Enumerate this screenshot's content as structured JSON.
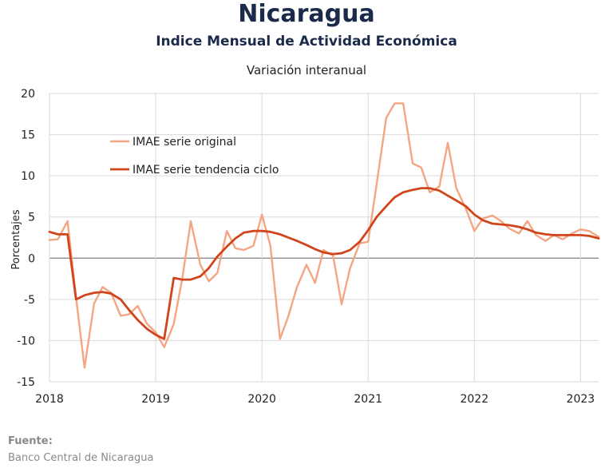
{
  "header": {
    "title": "Nicaragua",
    "subtitle": "Indice Mensual de  Actividad Económica",
    "subtitle2": "Variación interanual"
  },
  "footer": {
    "source_label": "Fuente:",
    "source_text": "Banco Central de Nicaragua"
  },
  "colors": {
    "original": "#f4a582",
    "trend": "#d0451b",
    "grid": "#d9d9d9",
    "zero": "#7f7f7f"
  },
  "chart_data": {
    "type": "line",
    "ylabel": "Porcentajes",
    "ylim": [
      -15,
      20
    ],
    "xlim": [
      2018,
      2023.17
    ],
    "y_ticks": [
      "-15",
      "-10",
      "-5",
      "0",
      "5",
      "10",
      "15",
      "20"
    ],
    "x_ticks": [
      "2018",
      "2019",
      "2020",
      "2021",
      "2022",
      "2023"
    ],
    "grid": true,
    "legend_position": "top-left",
    "series": [
      {
        "name": "IMAE serie original",
        "color": "#f4a582",
        "x": [
          2018.0,
          2018.08,
          2018.17,
          2018.25,
          2018.33,
          2018.42,
          2018.5,
          2018.58,
          2018.67,
          2018.75,
          2018.83,
          2018.92,
          2019.0,
          2019.08,
          2019.17,
          2019.25,
          2019.33,
          2019.42,
          2019.5,
          2019.58,
          2019.67,
          2019.75,
          2019.83,
          2019.92,
          2020.0,
          2020.08,
          2020.17,
          2020.25,
          2020.33,
          2020.42,
          2020.5,
          2020.58,
          2020.67,
          2020.75,
          2020.83,
          2020.92,
          2021.0,
          2021.08,
          2021.17,
          2021.25,
          2021.33,
          2021.42,
          2021.5,
          2021.58,
          2021.67,
          2021.75,
          2021.83,
          2021.92,
          2022.0,
          2022.08,
          2022.17,
          2022.25,
          2022.33,
          2022.42,
          2022.5,
          2022.58,
          2022.67,
          2022.75,
          2022.83,
          2022.92,
          2023.0,
          2023.08,
          2023.17
        ],
        "values": [
          2.2,
          2.3,
          4.5,
          -4.8,
          -13.3,
          -5.5,
          -3.5,
          -4.2,
          -7.0,
          -6.8,
          -5.8,
          -8.0,
          -9.0,
          -10.8,
          -8.0,
          -2.5,
          4.5,
          -0.8,
          -2.8,
          -1.8,
          3.3,
          1.2,
          1.0,
          1.5,
          5.3,
          1.5,
          -9.8,
          -7.0,
          -3.5,
          -0.8,
          -3.0,
          1.0,
          0.3,
          -5.6,
          -1.2,
          1.8,
          2.0,
          9.0,
          17.0,
          18.8,
          18.8,
          11.5,
          11.0,
          8.0,
          8.7,
          14.0,
          8.5,
          6.0,
          3.3,
          4.8,
          5.2,
          4.5,
          3.6,
          3.0,
          4.5,
          2.8,
          2.1,
          2.8,
          2.3,
          3.0,
          3.5,
          3.3,
          2.6
        ]
      },
      {
        "name": "IMAE serie  tendencia ciclo",
        "color": "#d0451b",
        "x": [
          2018.0,
          2018.08,
          2018.17,
          2018.25,
          2018.33,
          2018.42,
          2018.5,
          2018.58,
          2018.67,
          2018.75,
          2018.83,
          2018.92,
          2019.0,
          2019.08,
          2019.17,
          2019.25,
          2019.33,
          2019.42,
          2019.5,
          2019.58,
          2019.67,
          2019.75,
          2019.83,
          2019.92,
          2020.0,
          2020.08,
          2020.17,
          2020.25,
          2020.33,
          2020.42,
          2020.5,
          2020.58,
          2020.67,
          2020.75,
          2020.83,
          2020.92,
          2021.0,
          2021.08,
          2021.17,
          2021.25,
          2021.33,
          2021.42,
          2021.5,
          2021.58,
          2021.67,
          2021.75,
          2021.83,
          2021.92,
          2022.0,
          2022.08,
          2022.17,
          2022.25,
          2022.33,
          2022.42,
          2022.5,
          2022.58,
          2022.67,
          2022.75,
          2022.83,
          2022.92,
          2023.0,
          2023.08,
          2023.17
        ],
        "values": [
          3.2,
          2.9,
          2.9,
          -5.0,
          -4.5,
          -4.2,
          -4.1,
          -4.3,
          -5.0,
          -6.3,
          -7.5,
          -8.6,
          -9.3,
          -9.8,
          -2.4,
          -2.6,
          -2.6,
          -2.2,
          -1.2,
          0.2,
          1.4,
          2.4,
          3.1,
          3.3,
          3.3,
          3.2,
          2.9,
          2.5,
          2.1,
          1.6,
          1.1,
          0.7,
          0.5,
          0.6,
          1.0,
          2.0,
          3.4,
          5.0,
          6.3,
          7.4,
          8.0,
          8.3,
          8.5,
          8.5,
          8.2,
          7.6,
          7.0,
          6.3,
          5.3,
          4.6,
          4.2,
          4.1,
          4.0,
          3.8,
          3.5,
          3.1,
          2.9,
          2.8,
          2.8,
          2.8,
          2.8,
          2.7,
          2.4
        ]
      }
    ]
  }
}
